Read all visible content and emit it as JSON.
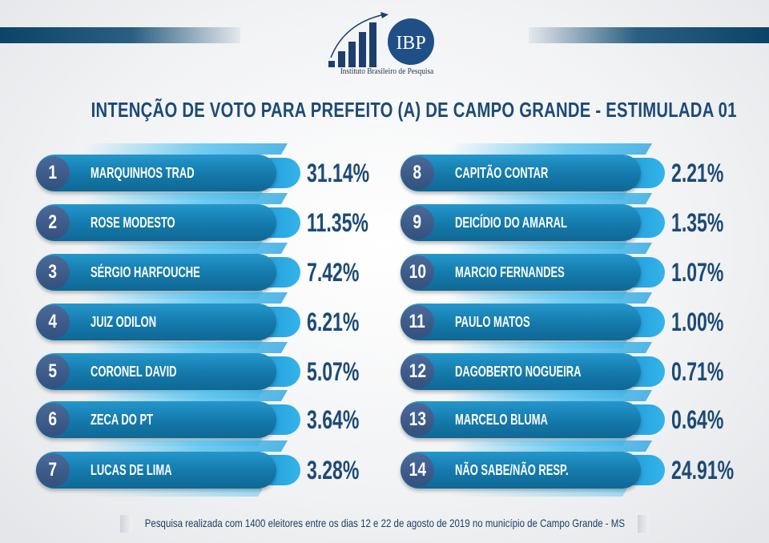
{
  "logo": {
    "acronym": "IBP",
    "subtitle": "Instituto Brasileiro de Pesquisa"
  },
  "title": "INTENÇÃO DE VOTO PARA PREFEITO (A) DE CAMPO GRANDE - ESTIMULADA 01",
  "colors": {
    "title": "#1c4a76",
    "pill": "#1479ab",
    "number_circle": "#3d5a88",
    "cap": "#2aa6e0"
  },
  "candidates": [
    {
      "rank": "1",
      "name": "MARQUINHOS TRAD",
      "percent": "31.14%"
    },
    {
      "rank": "2",
      "name": "ROSE MODESTO",
      "percent": "11.35%"
    },
    {
      "rank": "3",
      "name": "SÉRGIO HARFOUCHE",
      "percent": "7.42%"
    },
    {
      "rank": "4",
      "name": "JUIZ ODILON",
      "percent": "6.21%"
    },
    {
      "rank": "5",
      "name": "CORONEL DAVID",
      "percent": "5.07%"
    },
    {
      "rank": "6",
      "name": "ZECA DO PT",
      "percent": "3.64%"
    },
    {
      "rank": "7",
      "name": "LUCAS DE LIMA",
      "percent": "3.28%"
    },
    {
      "rank": "8",
      "name": "CAPITÃO CONTAR",
      "percent": "2.21%"
    },
    {
      "rank": "9",
      "name": "DEICÍDIO DO AMARAL",
      "percent": "1.35%"
    },
    {
      "rank": "10",
      "name": "MARCIO FERNANDES",
      "percent": "1.07%"
    },
    {
      "rank": "11",
      "name": "PAULO MATOS",
      "percent": "1.00%"
    },
    {
      "rank": "12",
      "name": "DAGOBERTO NOGUEIRA",
      "percent": "0.71%"
    },
    {
      "rank": "13",
      "name": "MARCELO BLUMA",
      "percent": "0.64%"
    },
    {
      "rank": "14",
      "name": "NÃO SABE/NÃO RESP.",
      "percent": "24.91%"
    }
  ],
  "footer": "Pesquisa realizada com 1400 eleitores entre os dias 12 e 22 de agosto de 2019 no município de Campo Grande - MS"
}
